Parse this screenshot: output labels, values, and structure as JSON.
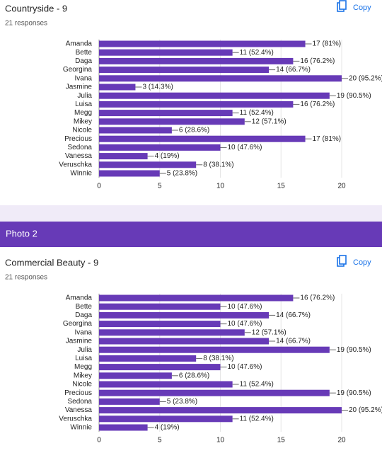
{
  "sections": [
    {
      "title": "Countryside - 9",
      "responses": "21 responses",
      "copy": "Copy"
    },
    {
      "title": "Commercial Beauty - 9",
      "responses": "21 responses",
      "copy": "Copy"
    }
  ],
  "banner": "Photo 2",
  "chart_data": [
    {
      "type": "hbar",
      "color": "#673ab7",
      "grid": true,
      "categories": [
        "Amanda",
        "Bette",
        "Daga",
        "Georgina",
        "Ivana",
        "Jasmine",
        "Julia",
        "Luisa",
        "Megg",
        "Mikey",
        "Nicole",
        "Precious",
        "Sedona",
        "Vanessa",
        "Veruschka",
        "Winnie"
      ],
      "values": [
        17,
        11,
        16,
        14,
        20,
        3,
        19,
        16,
        11,
        12,
        6,
        17,
        10,
        4,
        8,
        5
      ],
      "value_labels": [
        "17 (81%)",
        "11 (52.4%)",
        "16 (76.2%)",
        "14 (66.7%)",
        "20 (95.2%)",
        "3 (14.3%)",
        "19 (90.5%)",
        "16 (76.2%)",
        "11 (52.4%)",
        "12 (57.1%)",
        "6 (28.6%)",
        "17 (81%)",
        "10 (47.6%)",
        "4 (19%)",
        "8 (38.1%)",
        "5 (23.8%)"
      ],
      "xlim": [
        0,
        20
      ],
      "xticks": [
        0,
        5,
        10,
        15,
        20
      ]
    },
    {
      "type": "hbar",
      "color": "#673ab7",
      "grid": true,
      "categories": [
        "Amanda",
        "Bette",
        "Daga",
        "Georgina",
        "Ivana",
        "Jasmine",
        "Julia",
        "Luisa",
        "Megg",
        "Mikey",
        "Nicole",
        "Precious",
        "Sedona",
        "Vanessa",
        "Veruschka",
        "Winnie"
      ],
      "values": [
        16,
        10,
        14,
        10,
        12,
        14,
        19,
        8,
        10,
        6,
        11,
        19,
        5,
        20,
        11,
        4
      ],
      "value_labels": [
        "16 (76.2%)",
        "10 (47.6%)",
        "14 (66.7%)",
        "10 (47.6%)",
        "12 (57.1%)",
        "14 (66.7%)",
        "19 (90.5%)",
        "8 (38.1%)",
        "10 (47.6%)",
        "6 (28.6%)",
        "11 (52.4%)",
        "19 (90.5%)",
        "5 (23.8%)",
        "20 (95.2%)",
        "11 (52.4%)",
        "4 (19%)"
      ],
      "xlim": [
        0,
        20
      ],
      "xticks": [
        0,
        5,
        10,
        15,
        20
      ]
    }
  ]
}
